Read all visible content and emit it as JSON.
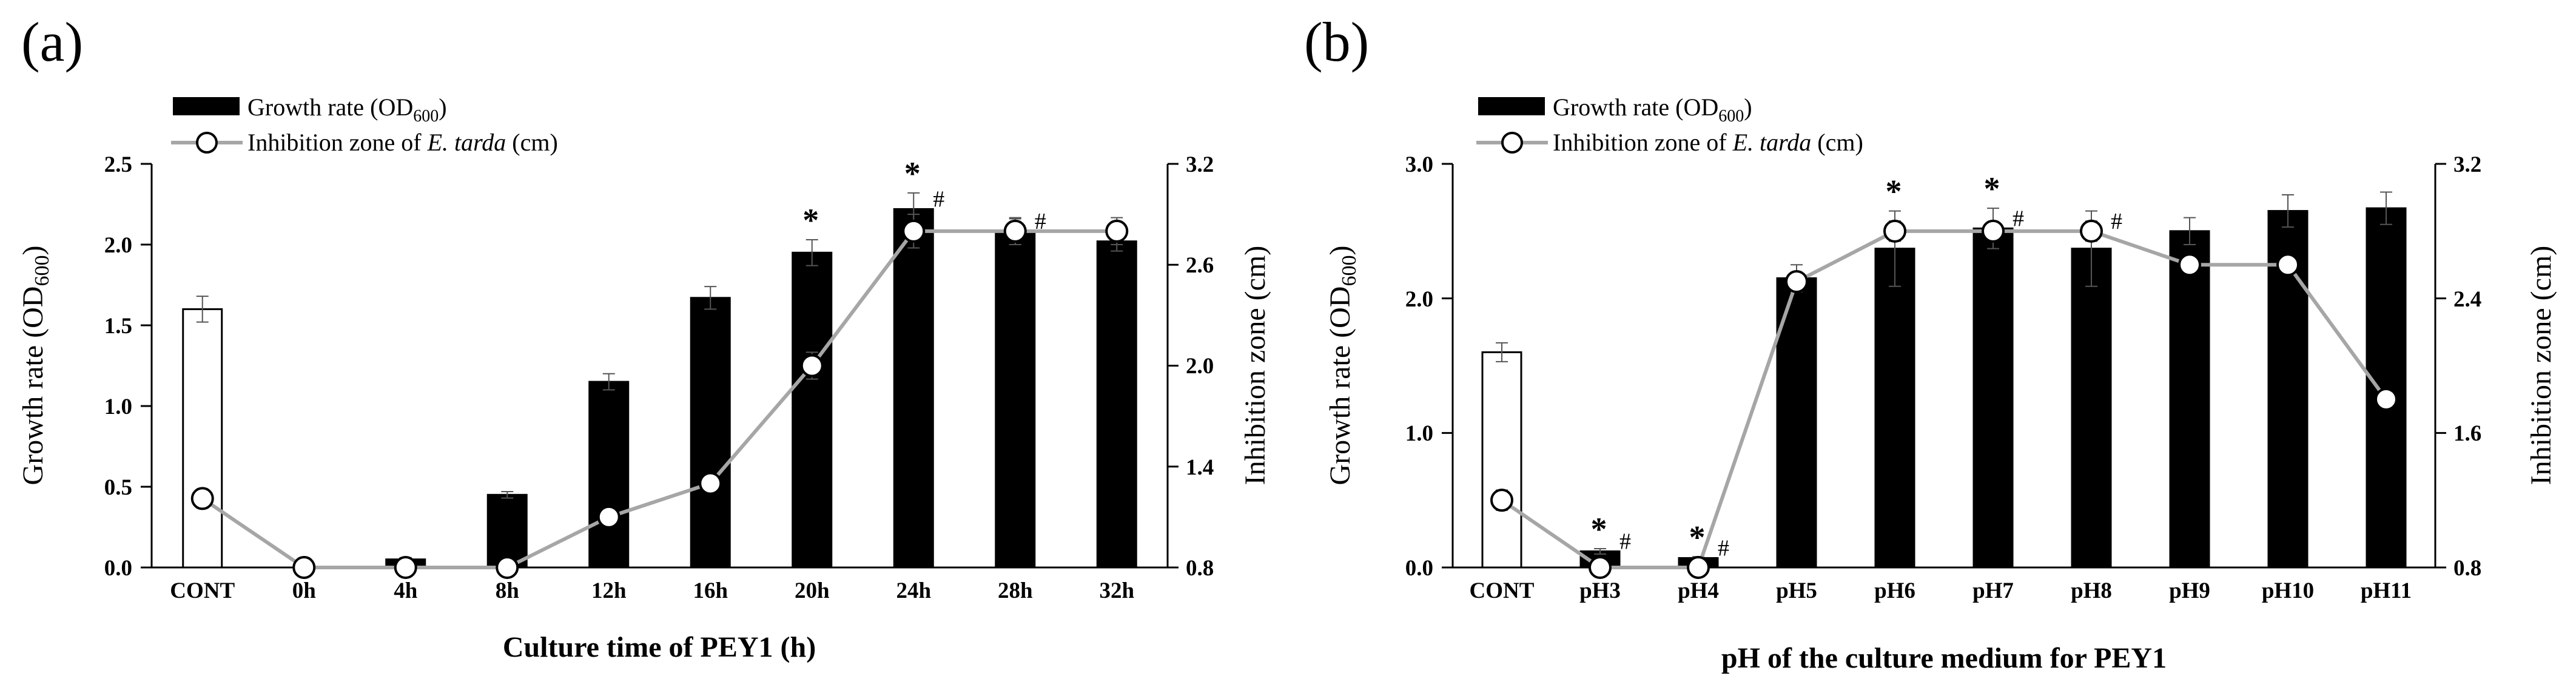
{
  "chart_data": [
    {
      "type": "bar",
      "panel_label": "(a)",
      "title": "",
      "xlabel": "Culture time of PEY1 (h)",
      "ylabel": {
        "main": "Growth rate (OD",
        "sub": "600",
        "tail": ")"
      },
      "y2label": "Inhibition zone (cm)",
      "categories": [
        "CONT",
        "0h",
        "4h",
        "8h",
        "12h",
        "16h",
        "20h",
        "24h",
        "28h",
        "32h"
      ],
      "ylim": [
        0,
        2.5
      ],
      "yticks": [
        "0.0",
        "0.5",
        "1.0",
        "1.5",
        "2.0",
        "2.5"
      ],
      "y2lim": [
        0.8,
        3.2
      ],
      "y2ticks": [
        "0.8",
        "1.4",
        "2.0",
        "2.6",
        "3.2"
      ],
      "legend": {
        "position": "top-left",
        "bar": {
          "main": "Growth rate (OD",
          "sub": "600",
          "tail": ")"
        },
        "line": {
          "pre": "Inhibition zone of ",
          "italic": "E. tarda",
          "post": " (cm)"
        }
      },
      "series": [
        {
          "name": "Growth rate (OD600)",
          "kind": "bar",
          "values": [
            1.6,
            0.0,
            0.05,
            0.45,
            1.15,
            1.67,
            1.95,
            2.22,
            2.08,
            2.02
          ],
          "errors": [
            0.08,
            0.0,
            0.01,
            0.02,
            0.05,
            0.07,
            0.08,
            0.1,
            0.08,
            0.06
          ],
          "colors": [
            "#ffffff",
            "#000000",
            "#000000",
            "#000000",
            "#000000",
            "#000000",
            "#000000",
            "#000000",
            "#000000",
            "#000000"
          ]
        },
        {
          "name": "Inhibition zone of E. tarda (cm)",
          "kind": "line",
          "axis": "right",
          "values": [
            1.21,
            0.8,
            0.8,
            0.8,
            1.1,
            1.3,
            2.0,
            2.8,
            2.8,
            2.8
          ],
          "errors": [
            0.05,
            0.0,
            0.0,
            0.0,
            0.03,
            0.04,
            0.08,
            0.1,
            0.08,
            0.08
          ]
        }
      ],
      "annotations": [
        {
          "text": "*",
          "category": "20h"
        },
        {
          "text": "*",
          "category": "24h"
        },
        {
          "text": "#",
          "category": "24h"
        },
        {
          "text": "#",
          "category": "28h"
        }
      ]
    },
    {
      "type": "bar",
      "panel_label": "(b)",
      "title": "",
      "xlabel": "pH of the culture medium for PEY1",
      "ylabel": {
        "main": "Growth rate (OD",
        "sub": "600",
        "tail": ")"
      },
      "y2label": "Inhibition zone (cm)",
      "categories": [
        "CONT",
        "pH3",
        "pH4",
        "pH5",
        "pH6",
        "pH7",
        "pH8",
        "pH9",
        "pH10",
        "pH11"
      ],
      "ylim": [
        0,
        3.0
      ],
      "yticks": [
        "0.0",
        "1.0",
        "2.0",
        "3.0"
      ],
      "y2lim": [
        0.8,
        3.2
      ],
      "y2ticks": [
        "0.8",
        "1.6",
        "2.4",
        "3.2"
      ],
      "legend": {
        "position": "top-left",
        "bar": {
          "main": "Growth rate (OD",
          "sub": "600",
          "tail": ")"
        },
        "line": {
          "pre": "Inhibition zone of ",
          "italic": "E. tarda",
          "post": " (cm)"
        }
      },
      "series": [
        {
          "name": "Growth rate (OD600)",
          "kind": "bar",
          "values": [
            1.6,
            0.12,
            0.07,
            2.15,
            2.37,
            2.52,
            2.37,
            2.5,
            2.65,
            2.67
          ],
          "errors": [
            0.07,
            0.02,
            0.01,
            0.1,
            0.28,
            0.15,
            0.28,
            0.1,
            0.12,
            0.12
          ],
          "colors": [
            "#ffffff",
            "#000000",
            "#000000",
            "#000000",
            "#000000",
            "#000000",
            "#000000",
            "#000000",
            "#000000",
            "#000000"
          ]
        },
        {
          "name": "Inhibition zone of E. tarda (cm)",
          "kind": "line",
          "axis": "right",
          "values": [
            1.2,
            0.8,
            0.8,
            2.5,
            2.8,
            2.8,
            2.8,
            2.6,
            2.6,
            1.8
          ],
          "errors": [
            0.06,
            0.0,
            0.0,
            0.03,
            0.06,
            0.05,
            0.06,
            0.04,
            0.04,
            0.03
          ]
        }
      ],
      "annotations": [
        {
          "text": "*",
          "category": "pH3"
        },
        {
          "text": "#",
          "category": "pH3"
        },
        {
          "text": "*",
          "category": "pH4"
        },
        {
          "text": "#",
          "category": "pH4"
        },
        {
          "text": "*",
          "category": "pH6"
        },
        {
          "text": "*",
          "category": "pH7"
        },
        {
          "text": "#",
          "category": "pH7"
        },
        {
          "text": "#",
          "category": "pH8"
        }
      ]
    }
  ]
}
